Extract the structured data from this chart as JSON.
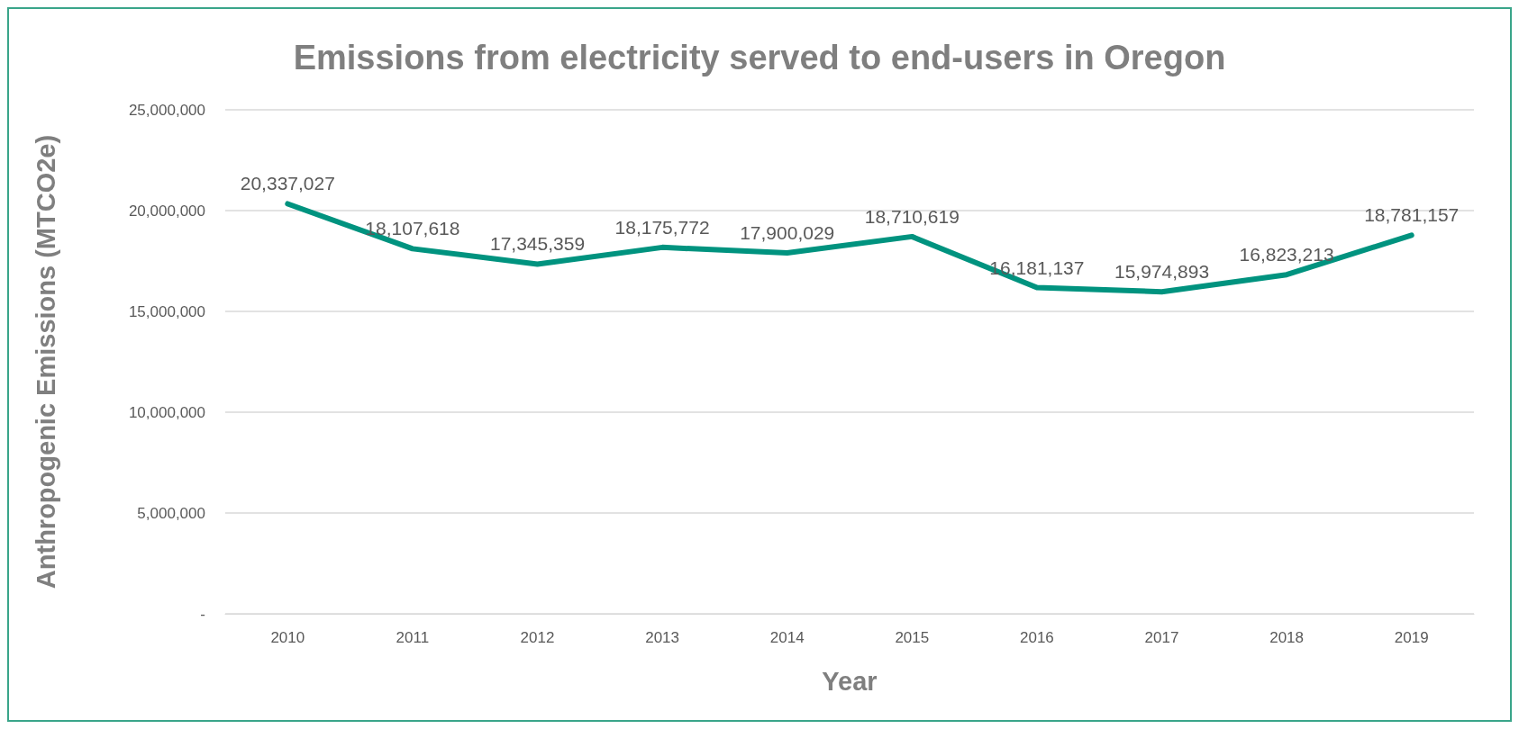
{
  "chart_data": {
    "type": "line",
    "title": "Emissions from electricity served to end-users in Oregon",
    "xlabel": "Year",
    "ylabel": "Anthropogenic Emissions (MTCO2e)",
    "categories": [
      "2010",
      "2011",
      "2012",
      "2013",
      "2014",
      "2015",
      "2016",
      "2017",
      "2018",
      "2019"
    ],
    "values": [
      20337027,
      18107618,
      17345359,
      18175772,
      17900029,
      18710619,
      16181137,
      15974893,
      16823213,
      18781157
    ],
    "value_labels": [
      "20,337,027",
      "18,107,618",
      "17,345,359",
      "18,175,772",
      "17,900,029",
      "18,710,619",
      "16,181,137",
      "15,974,893",
      "16,823,213",
      "18,781,157"
    ],
    "color": "#00937f",
    "ylim": [
      0,
      25000000
    ],
    "yticks": [
      {
        "value": 0,
        "label": "-"
      },
      {
        "value": 5000000,
        "label": "5,000,000"
      },
      {
        "value": 10000000,
        "label": "10,000,000"
      },
      {
        "value": 15000000,
        "label": "15,000,000"
      },
      {
        "value": 20000000,
        "label": "20,000,000"
      },
      {
        "value": 25000000,
        "label": "25,000,000"
      }
    ],
    "grid": "y",
    "line_style": "solid"
  }
}
